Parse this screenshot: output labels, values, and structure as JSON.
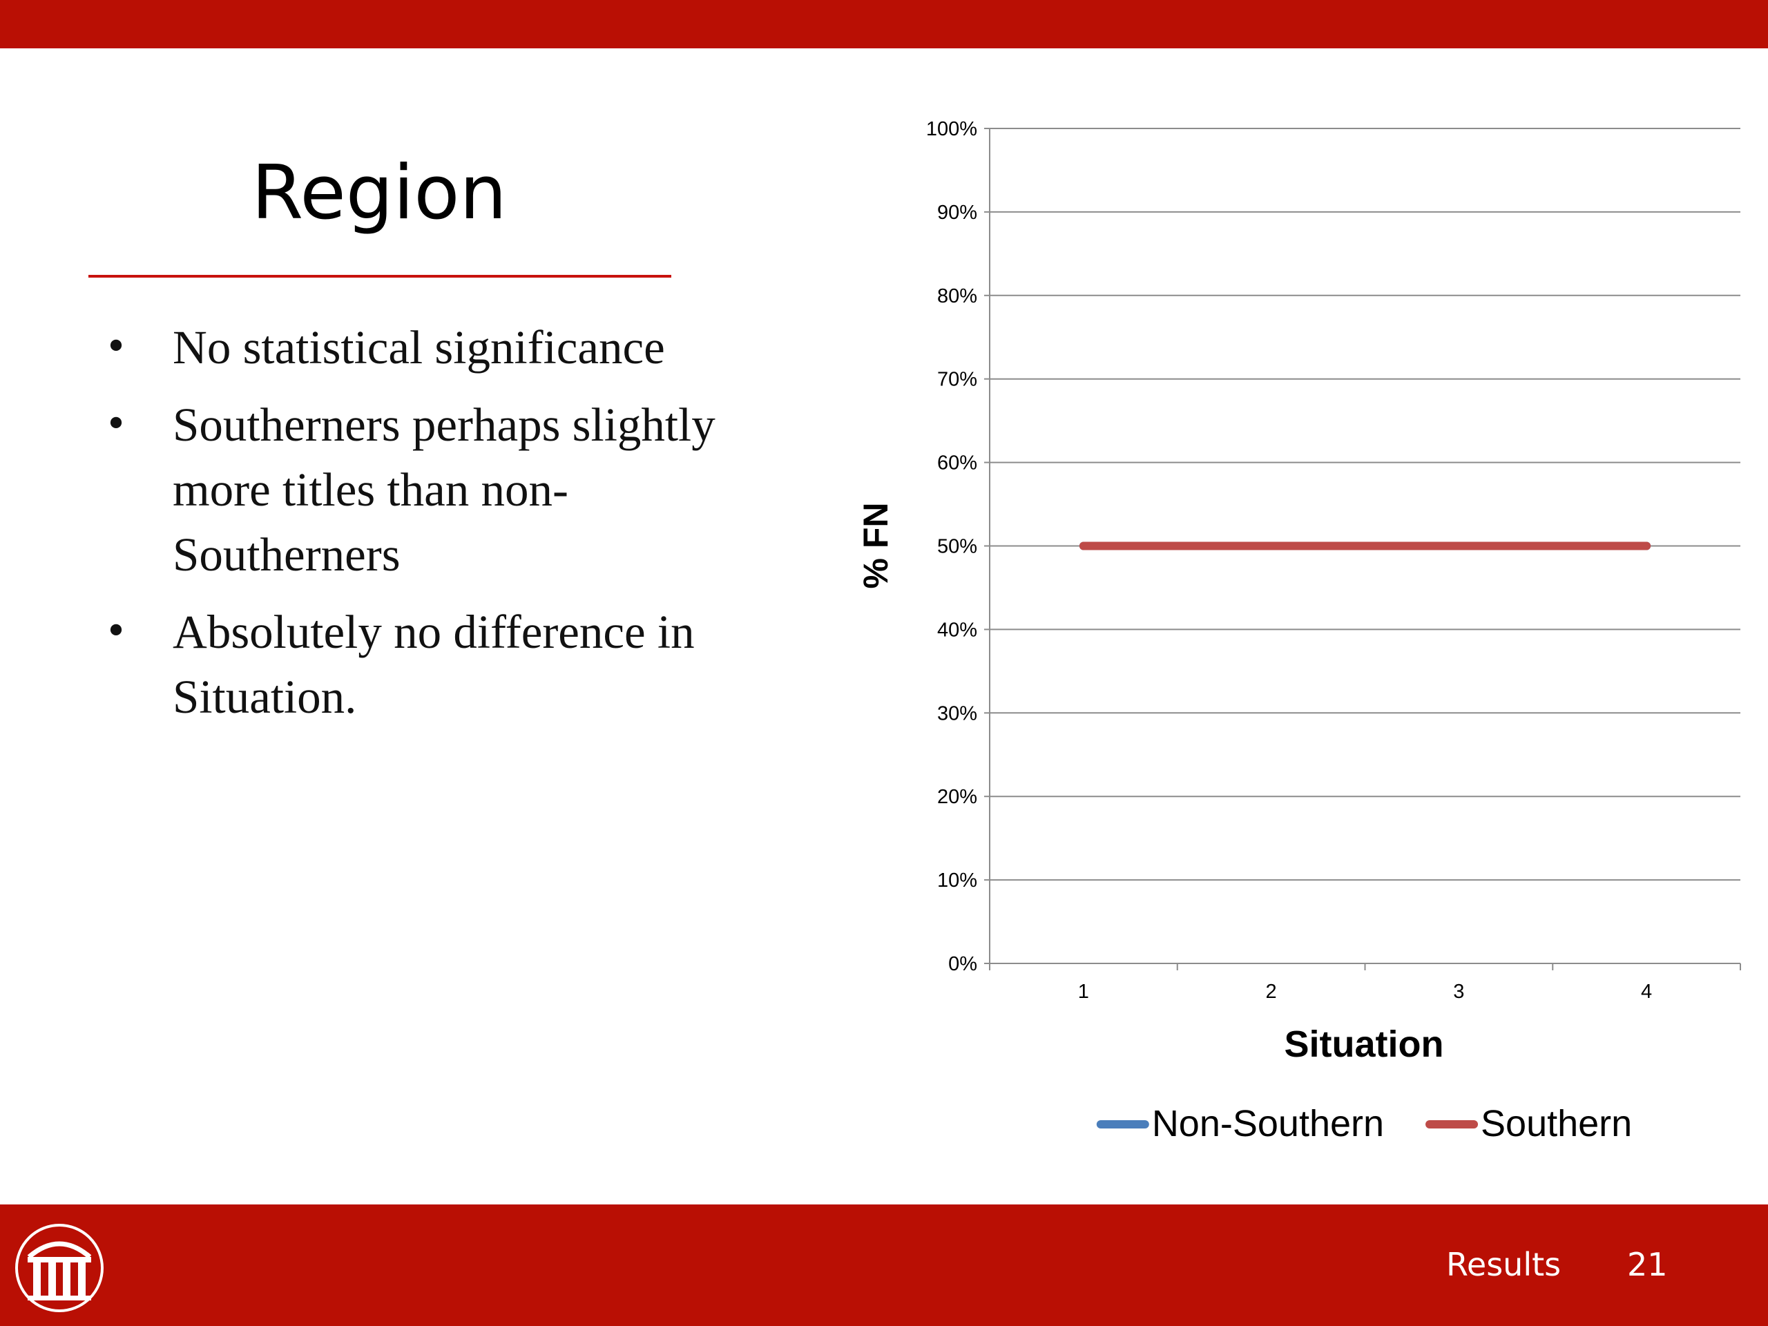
{
  "slide": {
    "title": "Region",
    "bullets": [
      "No statistical significance",
      "Southerners perhaps slightly more titles than non-Southerners",
      "Absolutely no difference in Situation."
    ],
    "footer": {
      "section": "Results",
      "page": "21"
    },
    "colors": {
      "brand_red": "#b90f04",
      "title_rule": "#c8120e"
    },
    "logo_icon": "university-arch-logo-icon"
  },
  "chart_data": {
    "type": "line",
    "title": "",
    "xlabel": "Situation",
    "ylabel": "% FN",
    "x": [
      1,
      2,
      3,
      4
    ],
    "x_tick_labels": [
      "1",
      "2",
      "3",
      "4"
    ],
    "y_tick_labels": [
      "0%",
      "10%",
      "20%",
      "30%",
      "40%",
      "50%",
      "60%",
      "70%",
      "80%",
      "90%",
      "100%"
    ],
    "ylim": [
      0,
      100
    ],
    "grid": true,
    "legend_position": "bottom",
    "series": [
      {
        "name": "Non-Southern",
        "values": [
          50,
          50,
          50,
          50
        ],
        "color": "#4a7ebb"
      },
      {
        "name": "Southern",
        "values": [
          50,
          50,
          50,
          50
        ],
        "color": "#be4b48"
      }
    ]
  }
}
